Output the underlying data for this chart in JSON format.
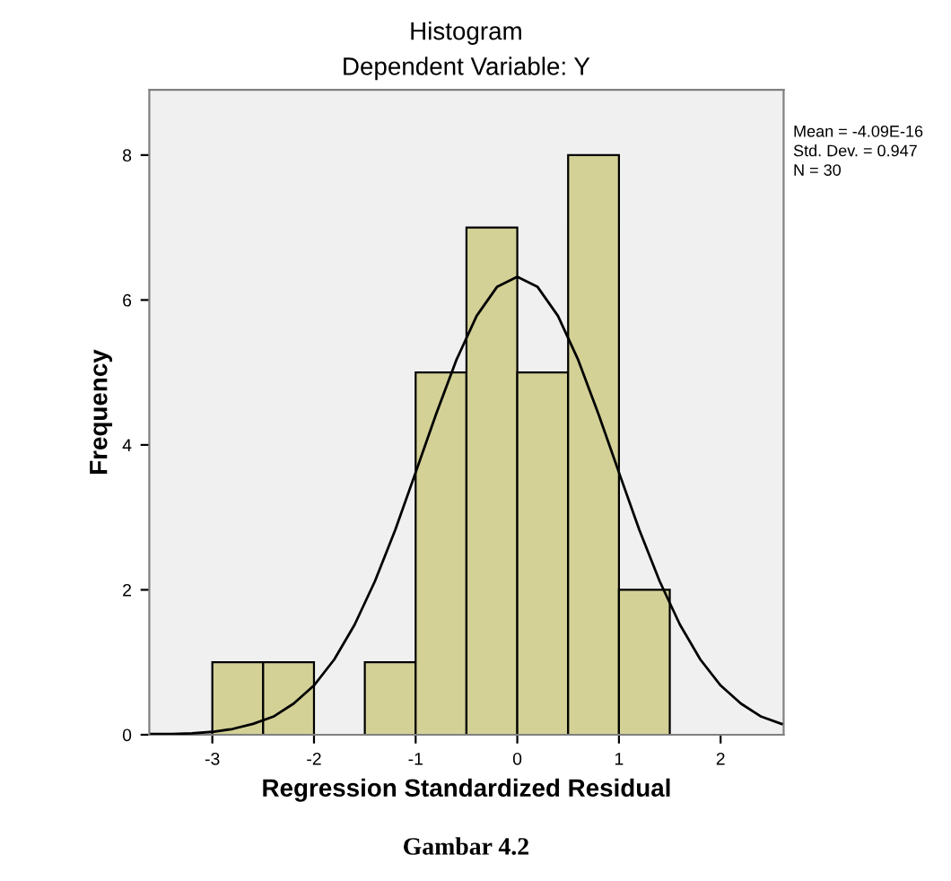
{
  "chart_data": {
    "type": "histogram",
    "title": "Histogram",
    "subtitle": "Dependent Variable: Y",
    "xlabel": "Regression Standardized Residual",
    "ylabel": "Frequency",
    "bins": [
      -3,
      -2.5,
      -2,
      -1.5,
      -1,
      -0.5,
      0,
      0.5,
      1,
      1.5
    ],
    "values": [
      1,
      1,
      0,
      1,
      5,
      7,
      5,
      8,
      2
    ],
    "color": "#d3d196",
    "series": [
      {
        "type": "line",
        "color": "#000000",
        "x": [
          -3.6,
          -3.4,
          -3.2,
          -3.0,
          -2.8,
          -2.6,
          -2.4,
          -2.2,
          -2.0,
          -1.8,
          -1.6,
          -1.4,
          -1.2,
          -1.0,
          -0.8,
          -0.6,
          -0.4,
          -0.2,
          0,
          0.2,
          0.4,
          0.6,
          0.8,
          1.0,
          1.2,
          1.4,
          1.6,
          1.8,
          2.0,
          2.2,
          2.4,
          2.6
        ],
        "values": [
          0.01,
          0.01,
          0.02,
          0.04,
          0.08,
          0.15,
          0.25,
          0.43,
          0.68,
          1.04,
          1.52,
          2.12,
          2.83,
          3.62,
          4.42,
          5.17,
          5.78,
          6.18,
          6.32,
          6.18,
          5.78,
          5.17,
          4.42,
          3.62,
          2.83,
          2.12,
          1.52,
          1.04,
          0.68,
          0.43,
          0.25,
          0.15
        ]
      }
    ],
    "xlim": [
      -3.62,
      2.62
    ],
    "ylim": [
      0,
      8.9
    ],
    "xticks": [
      -3,
      -2,
      -1,
      0,
      1,
      2
    ],
    "yticks": [
      0,
      2,
      4,
      6,
      8
    ],
    "grid": false,
    "annotations": [
      "Mean = -4.09E-16",
      "Std. Dev. = 0.947",
      "N = 30",
      "Gambar 4.2"
    ]
  }
}
